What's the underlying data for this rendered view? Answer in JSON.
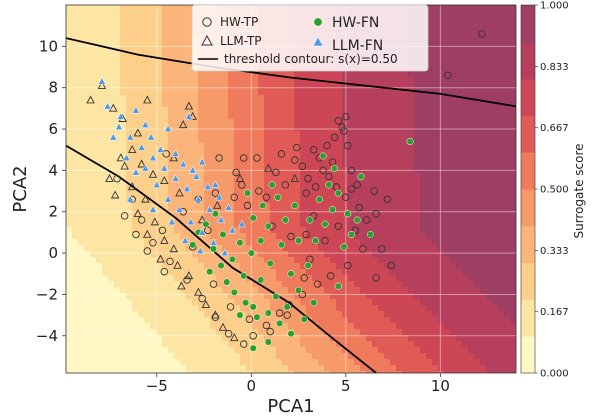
{
  "chart_data": {
    "type": "scatter",
    "xlabel": "PCA1",
    "ylabel": "PCA2",
    "xlim": [
      -9.8,
      14.0
    ],
    "ylim": [
      -5.8,
      12.0
    ],
    "xticks": [
      -5,
      0,
      5,
      10
    ],
    "yticks": [
      -4,
      -2,
      0,
      2,
      4,
      6,
      8,
      10
    ],
    "colorbar": {
      "label": "Surrogate score",
      "range": [
        0.0,
        1.0
      ],
      "ticks": [
        "0.000",
        "0.167",
        "0.333",
        "0.500",
        "0.667",
        "0.833",
        "1.000"
      ],
      "colors": [
        "#fff7c4",
        "#fde6a4",
        "#fcd08a",
        "#fbb57a",
        "#f79a6a",
        "#ef7a5c",
        "#e15b56",
        "#cc4656",
        "#b53f5c",
        "#9e3e63"
      ]
    },
    "grid": true,
    "legend": {
      "placement": "top-center",
      "entries": [
        {
          "label": "HW-TP",
          "marker": "open-circle"
        },
        {
          "label": "HW-FN",
          "marker": "filled-circle",
          "color": "#2ca02c"
        },
        {
          "label": "LLM-TP",
          "marker": "open-triangle"
        },
        {
          "label": "LLM-FN",
          "marker": "filled-triangle",
          "color": "#4c9be8"
        },
        {
          "label": "threshold contour: s(x)=0.50",
          "marker": "line"
        }
      ]
    },
    "series": [
      {
        "name": "HW-TP",
        "style": "open-circle",
        "points": [
          [
            12.2,
            10.6
          ],
          [
            10.4,
            8.6
          ],
          [
            -0.5,
            3.3
          ],
          [
            -0.8,
            3.9
          ],
          [
            0.3,
            4.6
          ],
          [
            1.6,
            4.8
          ],
          [
            2.4,
            5.1
          ],
          [
            2.7,
            4.2
          ],
          [
            3.0,
            3.6
          ],
          [
            3.4,
            3.2
          ],
          [
            3.6,
            4.6
          ],
          [
            4.0,
            5.2
          ],
          [
            4.4,
            5.6
          ],
          [
            4.8,
            6.1
          ],
          [
            5.0,
            6.6
          ],
          [
            4.6,
            6.4
          ],
          [
            3.8,
            4.0
          ],
          [
            4.1,
            3.7
          ],
          [
            4.5,
            3.2
          ],
          [
            5.0,
            2.7
          ],
          [
            5.3,
            3.1
          ],
          [
            5.7,
            2.2
          ],
          [
            6.1,
            1.6
          ],
          [
            6.3,
            0.9
          ],
          [
            5.9,
            0.2
          ],
          [
            5.1,
            -0.6
          ],
          [
            4.2,
            -1.1
          ],
          [
            3.5,
            -1.5
          ],
          [
            2.7,
            -2.0
          ],
          [
            2.0,
            -2.5
          ],
          [
            1.5,
            -2.9
          ],
          [
            0.8,
            -3.5
          ],
          [
            0.1,
            -4.0
          ],
          [
            -0.4,
            -4.4
          ],
          [
            -1.2,
            -3.9
          ],
          [
            -1.9,
            -3.1
          ],
          [
            -2.6,
            -2.2
          ],
          [
            -3.4,
            -1.3
          ],
          [
            -4.3,
            -0.4
          ],
          [
            -5.2,
            0.5
          ],
          [
            -5.8,
            1.6
          ],
          [
            -6.3,
            2.6
          ],
          [
            -6.7,
            1.8
          ],
          [
            -6.1,
            0.9
          ],
          [
            -4.7,
            1.1
          ],
          [
            -3.6,
            2.0
          ],
          [
            -2.8,
            2.6
          ],
          [
            -1.9,
            2.9
          ],
          [
            -0.9,
            2.7
          ],
          [
            -0.2,
            2.3
          ],
          [
            0.8,
            2.7
          ],
          [
            1.8,
            3.3
          ],
          [
            2.9,
            2.9
          ],
          [
            3.3,
            1.8
          ],
          [
            2.9,
            0.9
          ],
          [
            3.9,
            0.6
          ],
          [
            4.6,
            1.3
          ],
          [
            5.5,
            1.1
          ],
          [
            6.6,
            1.9
          ],
          [
            7.2,
            2.6
          ],
          [
            6.9,
            0.2
          ],
          [
            7.4,
            -0.6
          ],
          [
            6.6,
            -1.2
          ],
          [
            1.1,
            1.3
          ],
          [
            2.1,
            0.8
          ],
          [
            3.1,
            -0.3
          ],
          [
            0.4,
            3.0
          ],
          [
            1.3,
            3.9
          ],
          [
            2.3,
            4.5
          ],
          [
            3.3,
            5.0
          ],
          [
            4.3,
            4.4
          ],
          [
            5.3,
            4.0
          ],
          [
            5.6,
            3.3
          ],
          [
            6.5,
            3.0
          ],
          [
            5.1,
            5.2
          ],
          [
            4.9,
            5.9
          ],
          [
            -0.4,
            4.6
          ],
          [
            -1.7,
            4.6
          ],
          [
            -4.5,
            4.8
          ],
          [
            -7.1,
            3.6
          ],
          [
            -2.3,
            1.1
          ],
          [
            -3.1,
            0.3
          ],
          [
            -2.0,
            -1.5
          ],
          [
            -1.1,
            -2.6
          ],
          [
            -0.1,
            -3.2
          ],
          [
            1.0,
            -3.8
          ],
          [
            1.9,
            -3.0
          ],
          [
            2.8,
            -1.2
          ],
          [
            -4.6,
            -0.9
          ],
          [
            -5.5,
            0.1
          ]
        ]
      },
      {
        "name": "LLM-TP",
        "style": "open-triangle",
        "points": [
          [
            -8.5,
            7.4
          ],
          [
            -7.9,
            8.1
          ],
          [
            -7.3,
            7.0
          ],
          [
            -6.8,
            6.5
          ],
          [
            -5.5,
            7.4
          ],
          [
            -3.3,
            7.1
          ],
          [
            -3.6,
            6.2
          ],
          [
            -3.1,
            6.6
          ],
          [
            -6.0,
            5.8
          ],
          [
            -6.3,
            5.0
          ],
          [
            -5.8,
            4.3
          ],
          [
            -6.7,
            4.2
          ],
          [
            -5.2,
            3.8
          ],
          [
            -4.6,
            3.5
          ],
          [
            -6.3,
            3.2
          ],
          [
            -7.2,
            2.8
          ],
          [
            -5.6,
            2.6
          ],
          [
            -6.0,
            1.9
          ],
          [
            -5.1,
            1.5
          ],
          [
            -5.5,
            0.9
          ],
          [
            -4.6,
            0.6
          ],
          [
            -4.1,
            0.2
          ],
          [
            -4.8,
            -0.3
          ],
          [
            -3.9,
            -0.6
          ],
          [
            -3.3,
            -1.1
          ],
          [
            -3.7,
            -1.6
          ],
          [
            -2.8,
            -1.9
          ],
          [
            -2.4,
            -2.5
          ],
          [
            -1.9,
            -3.0
          ],
          [
            -1.5,
            -3.6
          ],
          [
            -0.9,
            -4.1
          ],
          [
            -3.8,
            2.9
          ],
          [
            -2.6,
            1.6
          ],
          [
            -1.8,
            2.3
          ],
          [
            -0.6,
            3.6
          ],
          [
            0.9,
            4.1
          ],
          [
            2.3,
            3.6
          ],
          [
            -4.1,
            4.6
          ],
          [
            -6.9,
            4.6
          ],
          [
            -7.5,
            3.6
          ]
        ]
      },
      {
        "name": "HW-FN",
        "style": "filled-circle",
        "color": "#2ca02c",
        "points": [
          [
            0.0,
            0.0
          ],
          [
            -0.6,
            0.5
          ],
          [
            0.5,
            0.6
          ],
          [
            -1.0,
            -0.3
          ],
          [
            1.0,
            -0.5
          ],
          [
            -0.4,
            -1.1
          ],
          [
            0.5,
            -1.3
          ],
          [
            -1.5,
            0.9
          ],
          [
            0.9,
            1.3
          ],
          [
            1.6,
            0.4
          ],
          [
            -2.0,
            0.2
          ],
          [
            0.1,
            1.7
          ],
          [
            2.1,
            -1.0
          ],
          [
            -0.9,
            -1.9
          ],
          [
            1.3,
            -2.1
          ],
          [
            0.1,
            -2.6
          ],
          [
            -1.3,
            -1.4
          ],
          [
            2.5,
            0.6
          ],
          [
            -2.4,
            1.4
          ],
          [
            1.8,
            1.6
          ],
          [
            0.3,
            -3.1
          ],
          [
            0.9,
            -2.9
          ],
          [
            1.5,
            -3.4
          ],
          [
            -0.3,
            -2.4
          ],
          [
            2.5,
            -1.8
          ],
          [
            3.0,
            -0.6
          ],
          [
            3.4,
            0.6
          ],
          [
            3.9,
            1.4
          ],
          [
            4.3,
            2.1
          ],
          [
            4.6,
            2.9
          ],
          [
            5.1,
            1.9
          ],
          [
            4.1,
            3.3
          ],
          [
            3.6,
            2.6
          ],
          [
            5.3,
            0.9
          ],
          [
            5.6,
            1.6
          ],
          [
            4.9,
            0.3
          ],
          [
            -1.9,
            1.9
          ],
          [
            -2.8,
            1.0
          ],
          [
            -1.6,
            -0.6
          ],
          [
            -2.2,
            -0.9
          ],
          [
            0.6,
            2.3
          ],
          [
            1.4,
            2.7
          ],
          [
            2.3,
            2.3
          ],
          [
            3.1,
            1.6
          ],
          [
            0.1,
            -4.6
          ],
          [
            0.9,
            -4.3
          ],
          [
            2.1,
            -3.9
          ],
          [
            8.4,
            5.4
          ],
          [
            5.8,
            3.7
          ],
          [
            6.3,
            0.9
          ],
          [
            4.4,
            4.1
          ],
          [
            3.8,
            4.7
          ],
          [
            1.9,
            -2.6
          ],
          [
            -0.6,
            -3.0
          ],
          [
            2.8,
            -3.2
          ],
          [
            -3.1,
            0.4
          ],
          [
            -0.2,
            2.9
          ],
          [
            1.1,
            3.3
          ],
          [
            3.3,
            -2.4
          ],
          [
            4.6,
            -1.6
          ]
        ]
      },
      {
        "name": "LLM-FN",
        "style": "filled-triangle",
        "color": "#4c9be8",
        "points": [
          [
            -7.9,
            8.3
          ],
          [
            -7.6,
            7.1
          ],
          [
            -7.0,
            6.1
          ],
          [
            -6.4,
            5.6
          ],
          [
            -5.8,
            5.1
          ],
          [
            -5.2,
            4.6
          ],
          [
            -4.6,
            4.1
          ],
          [
            -4.0,
            3.6
          ],
          [
            -3.4,
            3.1
          ],
          [
            -2.8,
            2.6
          ],
          [
            -2.2,
            2.1
          ],
          [
            -1.6,
            1.6
          ],
          [
            -1.0,
            1.1
          ],
          [
            -5.6,
            4.1
          ],
          [
            -5.0,
            3.3
          ],
          [
            -4.4,
            2.6
          ],
          [
            -3.8,
            2.1
          ],
          [
            -3.2,
            1.5
          ],
          [
            -2.6,
            1.0
          ],
          [
            -2.0,
            0.5
          ],
          [
            -1.4,
            0.0
          ],
          [
            -6.1,
            3.9
          ],
          [
            -6.6,
            4.6
          ],
          [
            -4.8,
            5.0
          ],
          [
            -3.6,
            4.3
          ],
          [
            -2.9,
            3.7
          ],
          [
            -2.3,
            3.2
          ],
          [
            -1.7,
            2.7
          ],
          [
            -6.4,
            2.6
          ],
          [
            -5.2,
            2.1
          ],
          [
            -4.2,
            1.5
          ],
          [
            -3.5,
            0.6
          ],
          [
            -2.7,
            0.1
          ],
          [
            -6.9,
            6.6
          ],
          [
            -7.3,
            5.6
          ],
          [
            -3.3,
            6.6
          ],
          [
            -4.4,
            6.0
          ],
          [
            -5.6,
            6.2
          ],
          [
            -6.1,
            6.9
          ],
          [
            -4.0,
            4.8
          ],
          [
            -3.1,
            4.0
          ],
          [
            -1.2,
            2.2
          ],
          [
            -0.5,
            1.4
          ],
          [
            -1.9,
            3.3
          ],
          [
            -2.6,
            4.4
          ],
          [
            -5.3,
            5.6
          ]
        ]
      }
    ]
  }
}
